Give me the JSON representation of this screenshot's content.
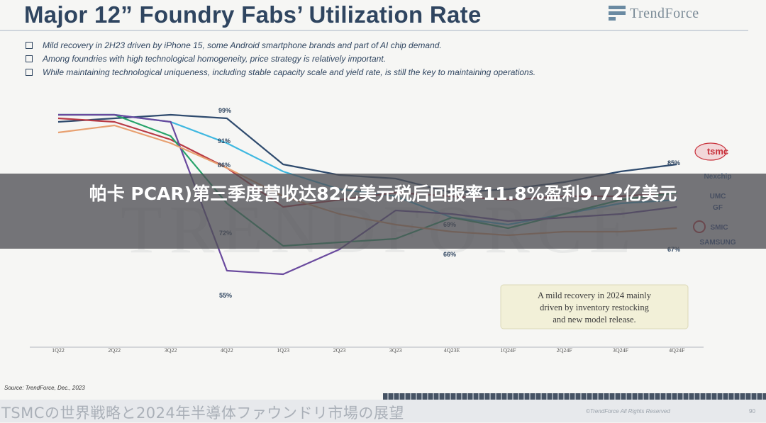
{
  "slide": {
    "title": "Major 12” Foundry Fabs’ Utilization Rate",
    "brand": "TrendForce",
    "bullets": [
      "Mild recovery in 2H23 driven by iPhone 15, some Android smartphone brands and part of AI chip demand.",
      "Among foundries with high technological homogeneity, price strategy is relatively important.",
      "While maintaining technological uniqueness, including stable capacity scale and yield rate, is still the key to maintaining operations."
    ],
    "source": "Source: TrendForce, Dec., 2023",
    "footer_title": "TSMCの世界戦略と2024年半導体ファウンドリ市場の展望",
    "footer_copyright": "©TrendForce All Rights Reserved",
    "footer_page": "90",
    "watermark": "TRENDFORCE"
  },
  "overlay": {
    "headline": "帕卡 PCAR)第三季度营收达82亿美元税后回报率11.8%盈利9.72亿美元"
  },
  "chart_data": {
    "type": "line",
    "categories": [
      "1Q22",
      "2Q22",
      "3Q22",
      "4Q22",
      "1Q23",
      "2Q23",
      "3Q23",
      "4Q23E",
      "1Q24F",
      "2Q24F",
      "3Q24F",
      "4Q24F"
    ],
    "ylim": [
      50,
      100
    ],
    "grid": false,
    "annotation": "A mild recovery in 2024 mainly driven by inventory restocking and new model release.",
    "labels": [
      "99%",
      "91%",
      "86%",
      "72%",
      "55%",
      "69%",
      "66%",
      "85%",
      "67%"
    ],
    "legend_labels": [
      "tsmc",
      "Nexchip",
      "UMC",
      "GF",
      "SMIC",
      "SAMSUNG"
    ],
    "series": [
      {
        "color": "#2f4b6e",
        "values": [
          97,
          98,
          99,
          98,
          85,
          82,
          81,
          77,
          78,
          80,
          83,
          85
        ]
      },
      {
        "color": "#3fb8e0",
        "values": [
          99,
          99,
          97,
          91,
          83,
          78,
          76,
          70,
          68,
          71,
          74,
          75
        ]
      },
      {
        "color": "#b83a45",
        "values": [
          98,
          97,
          92,
          84,
          73,
          75,
          77,
          76,
          75,
          76,
          76,
          77
        ]
      },
      {
        "color": "#27a36a",
        "values": [
          99,
          99,
          93,
          74,
          62,
          63,
          64,
          70,
          67,
          71,
          75,
          77
        ]
      },
      {
        "color": "#6a4a9e",
        "values": [
          99,
          99,
          97,
          55,
          54,
          61,
          72,
          71,
          69,
          70,
          71,
          73
        ]
      },
      {
        "color": "#e8a070",
        "values": [
          94,
          96,
          91,
          84,
          76,
          71,
          68,
          66,
          65,
          66,
          66,
          67
        ]
      }
    ]
  }
}
